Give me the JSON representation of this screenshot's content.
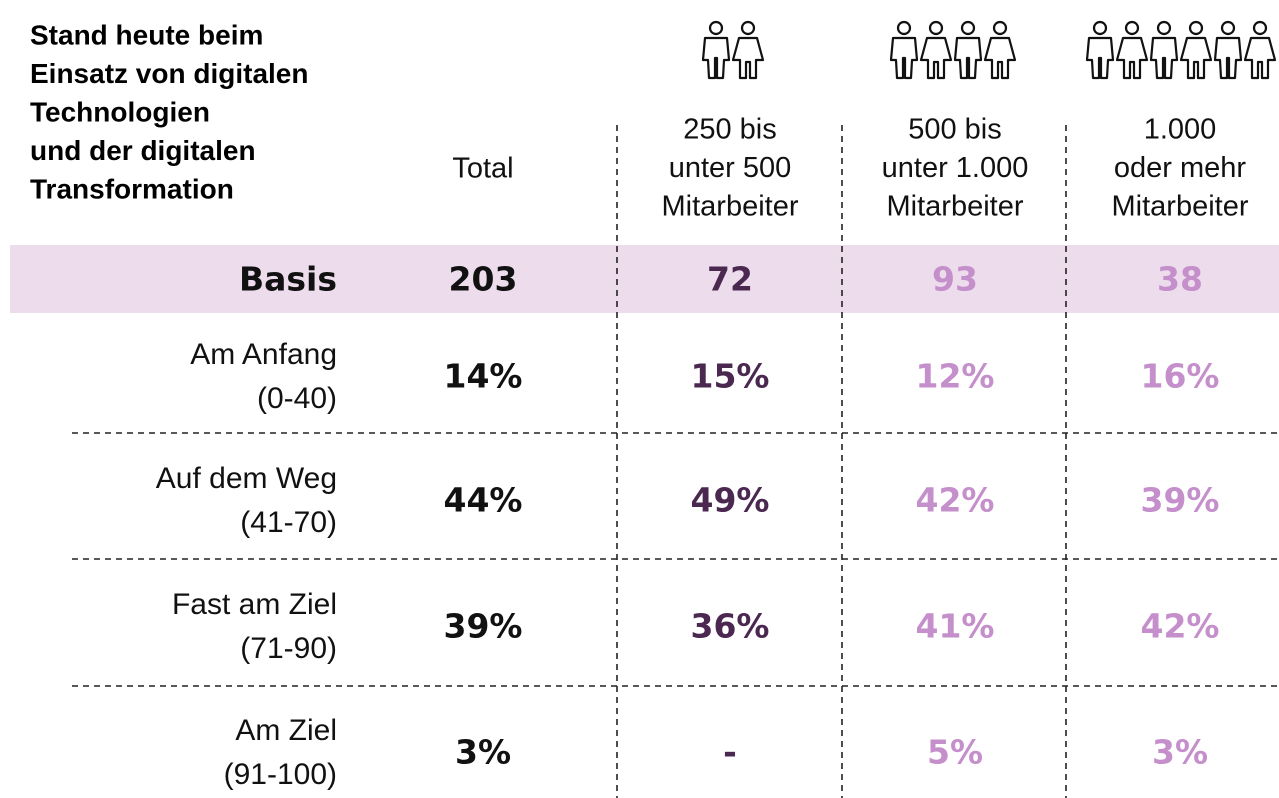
{
  "title": [
    "Stand heute beim",
    "Einsatz von digitalen",
    "Technologien",
    "und der digitalen",
    "Transformation"
  ],
  "columns": [
    [
      "Total"
    ],
    [
      "250 bis",
      "unter 500",
      "Mitarbeiter"
    ],
    [
      "500 bis",
      "unter 1.000",
      "Mitarbeiter"
    ],
    [
      "1.000",
      "oder mehr",
      "Mitarbeiter"
    ]
  ],
  "basis": {
    "label": "Basis",
    "values": [
      "203",
      "72",
      "93",
      "38"
    ]
  },
  "rows": [
    {
      "label": [
        "Am Anfang",
        "(0-40)"
      ],
      "values": [
        "14%",
        "15%",
        "12%",
        "16%"
      ]
    },
    {
      "label": [
        "Auf dem Weg",
        "(41-70)"
      ],
      "values": [
        "44%",
        "49%",
        "42%",
        "39%"
      ]
    },
    {
      "label": [
        "Fast am Ziel",
        "(71-90)"
      ],
      "values": [
        "39%",
        "36%",
        "41%",
        "42%"
      ]
    },
    {
      "label": [
        "Am Ziel",
        "(91-100)"
      ],
      "values": [
        "3%",
        "-",
        "5%",
        "3%"
      ]
    }
  ]
}
